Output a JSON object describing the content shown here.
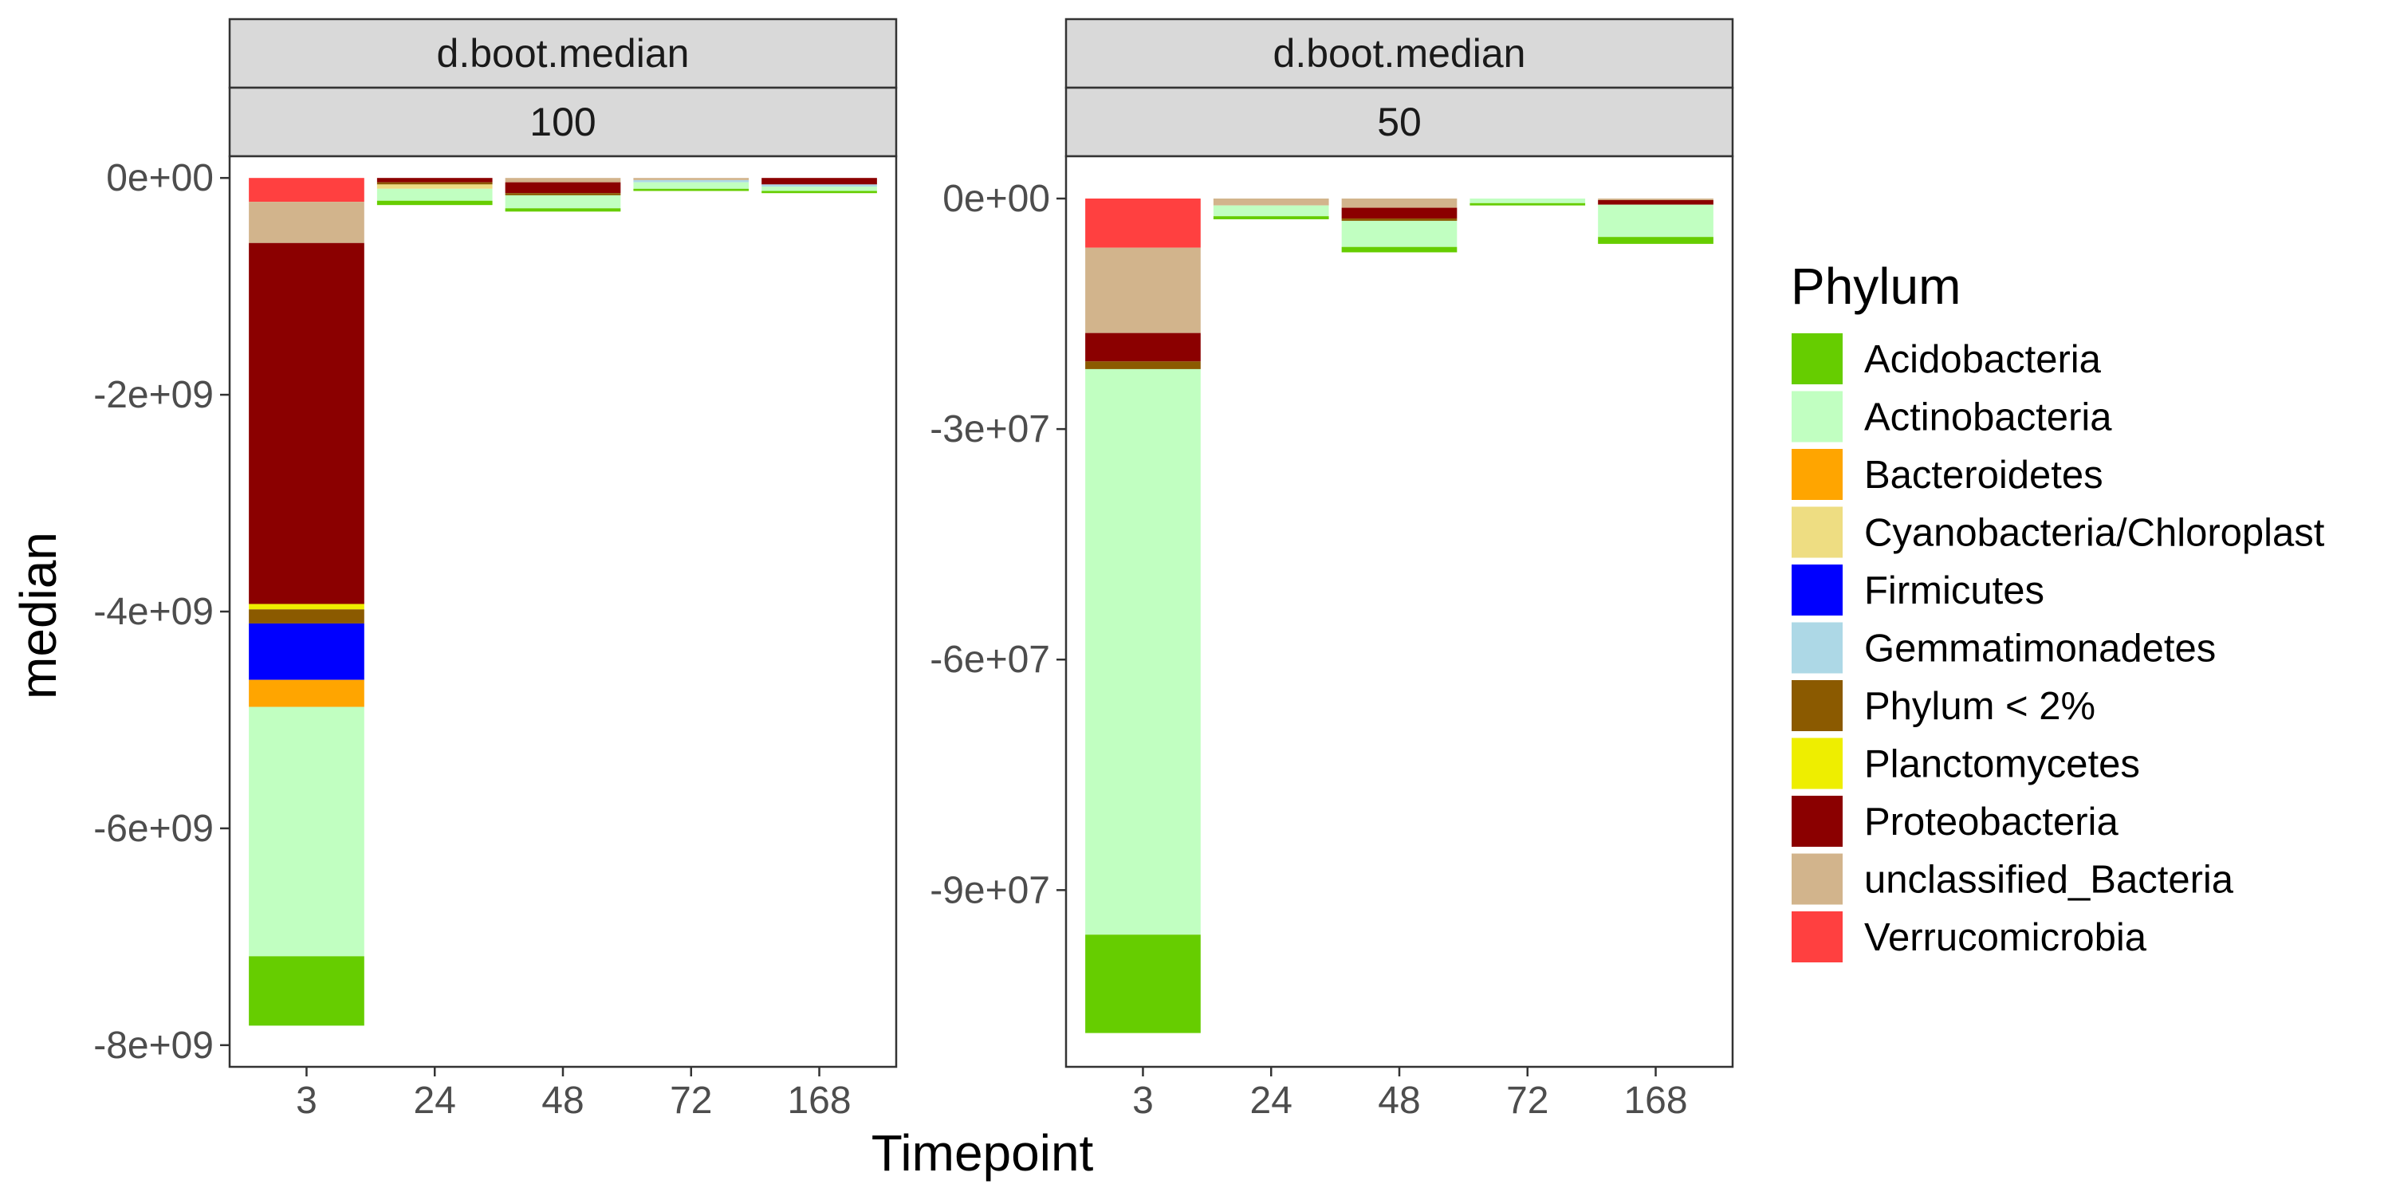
{
  "chart_data": {
    "type": "bar",
    "stacked": true,
    "xlabel": "Timepoint",
    "ylabel": "median",
    "categories": [
      "3",
      "24",
      "48",
      "72",
      "168"
    ],
    "legend": {
      "title": "Phylum",
      "position": "right",
      "entries": [
        {
          "name": "Acidobacteria",
          "color": "#66cd00"
        },
        {
          "name": "Actinobacteria",
          "color": "#c1ffc1"
        },
        {
          "name": "Bacteroidetes",
          "color": "#ffa500"
        },
        {
          "name": "Cyanobacteria/Chloroplast",
          "color": "#eedd82"
        },
        {
          "name": "Firmicutes",
          "color": "#0000ff"
        },
        {
          "name": "Gemmatimonadetes",
          "color": "#add8e6"
        },
        {
          "name": "Phylum < 2%",
          "color": "#8b5a00"
        },
        {
          "name": "Planctomycetes",
          "color": "#eeee00"
        },
        {
          "name": "Proteobacteria",
          "color": "#8b0000"
        },
        {
          "name": "unclassified_Bacteria",
          "color": "#d2b48c"
        },
        {
          "name": "Verrucomicrobia",
          "color": "#ff4040"
        }
      ]
    },
    "panels": [
      {
        "strip": [
          "d.boot.median",
          "100"
        ],
        "ylim": [
          -8200000000.0,
          200000000.0
        ],
        "yticks": [
          0,
          -2000000000.0,
          -4000000000.0,
          -6000000000.0,
          -8000000000.0
        ],
        "ytick_labels": [
          "0e+00",
          "-2e+09",
          "-4e+09",
          "-6e+09",
          "-8e+09"
        ],
        "stacks": [
          {
            "category": "3",
            "segments": [
              {
                "phylum": "Verrucomicrobia",
                "value": -220000000.0
              },
              {
                "phylum": "unclassified_Bacteria",
                "value": -380000000.0
              },
              {
                "phylum": "Proteobacteria",
                "value": -3330000000.0
              },
              {
                "phylum": "Planctomycetes",
                "value": -50000000.0
              },
              {
                "phylum": "Phylum < 2%",
                "value": -130000000.0
              },
              {
                "phylum": "Firmicutes",
                "value": -520000000.0
              },
              {
                "phylum": "Bacteroidetes",
                "value": -250000000.0
              },
              {
                "phylum": "Actinobacteria",
                "value": -2300000000.0
              },
              {
                "phylum": "Acidobacteria",
                "value": -640000000.0
              }
            ]
          },
          {
            "category": "24",
            "segments": [
              {
                "phylum": "Proteobacteria",
                "value": -40000000.0
              },
              {
                "phylum": "Phylum < 2%",
                "value": -20000000.0
              },
              {
                "phylum": "Cyanobacteria/Chloroplast",
                "value": -40000000.0
              },
              {
                "phylum": "Actinobacteria",
                "value": -110000000.0
              },
              {
                "phylum": "Acidobacteria",
                "value": -40000000.0
              }
            ]
          },
          {
            "category": "48",
            "segments": [
              {
                "phylum": "unclassified_Bacteria",
                "value": -40000000.0
              },
              {
                "phylum": "Proteobacteria",
                "value": -100000000.0
              },
              {
                "phylum": "Phylum < 2%",
                "value": -20000000.0
              },
              {
                "phylum": "Actinobacteria",
                "value": -120000000.0
              },
              {
                "phylum": "Acidobacteria",
                "value": -30000000.0
              }
            ]
          },
          {
            "category": "72",
            "segments": [
              {
                "phylum": "unclassified_Bacteria",
                "value": -20000000.0
              },
              {
                "phylum": "Gemmatimonadetes",
                "value": -20000000.0
              },
              {
                "phylum": "Actinobacteria",
                "value": -60000000.0
              },
              {
                "phylum": "Acidobacteria",
                "value": -20000000.0
              }
            ]
          },
          {
            "category": "168",
            "segments": [
              {
                "phylum": "Proteobacteria",
                "value": -60000000.0
              },
              {
                "phylum": "Gemmatimonadetes",
                "value": -20000000.0
              },
              {
                "phylum": "Actinobacteria",
                "value": -40000000.0
              },
              {
                "phylum": "Acidobacteria",
                "value": -20000000.0
              }
            ]
          }
        ]
      },
      {
        "strip": [
          "d.boot.median",
          "50"
        ],
        "ylim": [
          -113000000.0,
          5500000.0
        ],
        "yticks": [
          0,
          -30000000.0,
          -60000000.0,
          -90000000.0
        ],
        "ytick_labels": [
          "0e+00",
          "-3e+07",
          "-6e+07",
          "-9e+07"
        ],
        "stacks": [
          {
            "category": "3",
            "segments": [
              {
                "phylum": "Verrucomicrobia",
                "value": -6400000.0
              },
              {
                "phylum": "unclassified_Bacteria",
                "value": -11100000.0
              },
              {
                "phylum": "Proteobacteria",
                "value": -3700000.0
              },
              {
                "phylum": "Phylum < 2%",
                "value": -1000000.0
              },
              {
                "phylum": "Actinobacteria",
                "value": -73600000.0
              },
              {
                "phylum": "Acidobacteria",
                "value": -12800000.0
              }
            ]
          },
          {
            "category": "24",
            "segments": [
              {
                "phylum": "unclassified_Bacteria",
                "value": -900000.0
              },
              {
                "phylum": "Actinobacteria",
                "value": -1400000.0
              },
              {
                "phylum": "Acidobacteria",
                "value": -400000.0
              }
            ]
          },
          {
            "category": "48",
            "segments": [
              {
                "phylum": "unclassified_Bacteria",
                "value": -1200000.0
              },
              {
                "phylum": "Proteobacteria",
                "value": -1400000.0
              },
              {
                "phylum": "Phylum < 2%",
                "value": -300000.0
              },
              {
                "phylum": "Actinobacteria",
                "value": -3400000.0
              },
              {
                "phylum": "Acidobacteria",
                "value": -700000.0
              }
            ]
          },
          {
            "category": "72",
            "segments": [
              {
                "phylum": "Actinobacteria",
                "value": -600000.0
              },
              {
                "phylum": "Acidobacteria",
                "value": -300000.0
              }
            ]
          },
          {
            "category": "168",
            "segments": [
              {
                "phylum": "unclassified_Bacteria",
                "value": -200000.0
              },
              {
                "phylum": "Proteobacteria",
                "value": -600000.0
              },
              {
                "phylum": "Actinobacteria",
                "value": -4200000.0
              },
              {
                "phylum": "Acidobacteria",
                "value": -900000.0
              }
            ]
          }
        ]
      }
    ]
  }
}
